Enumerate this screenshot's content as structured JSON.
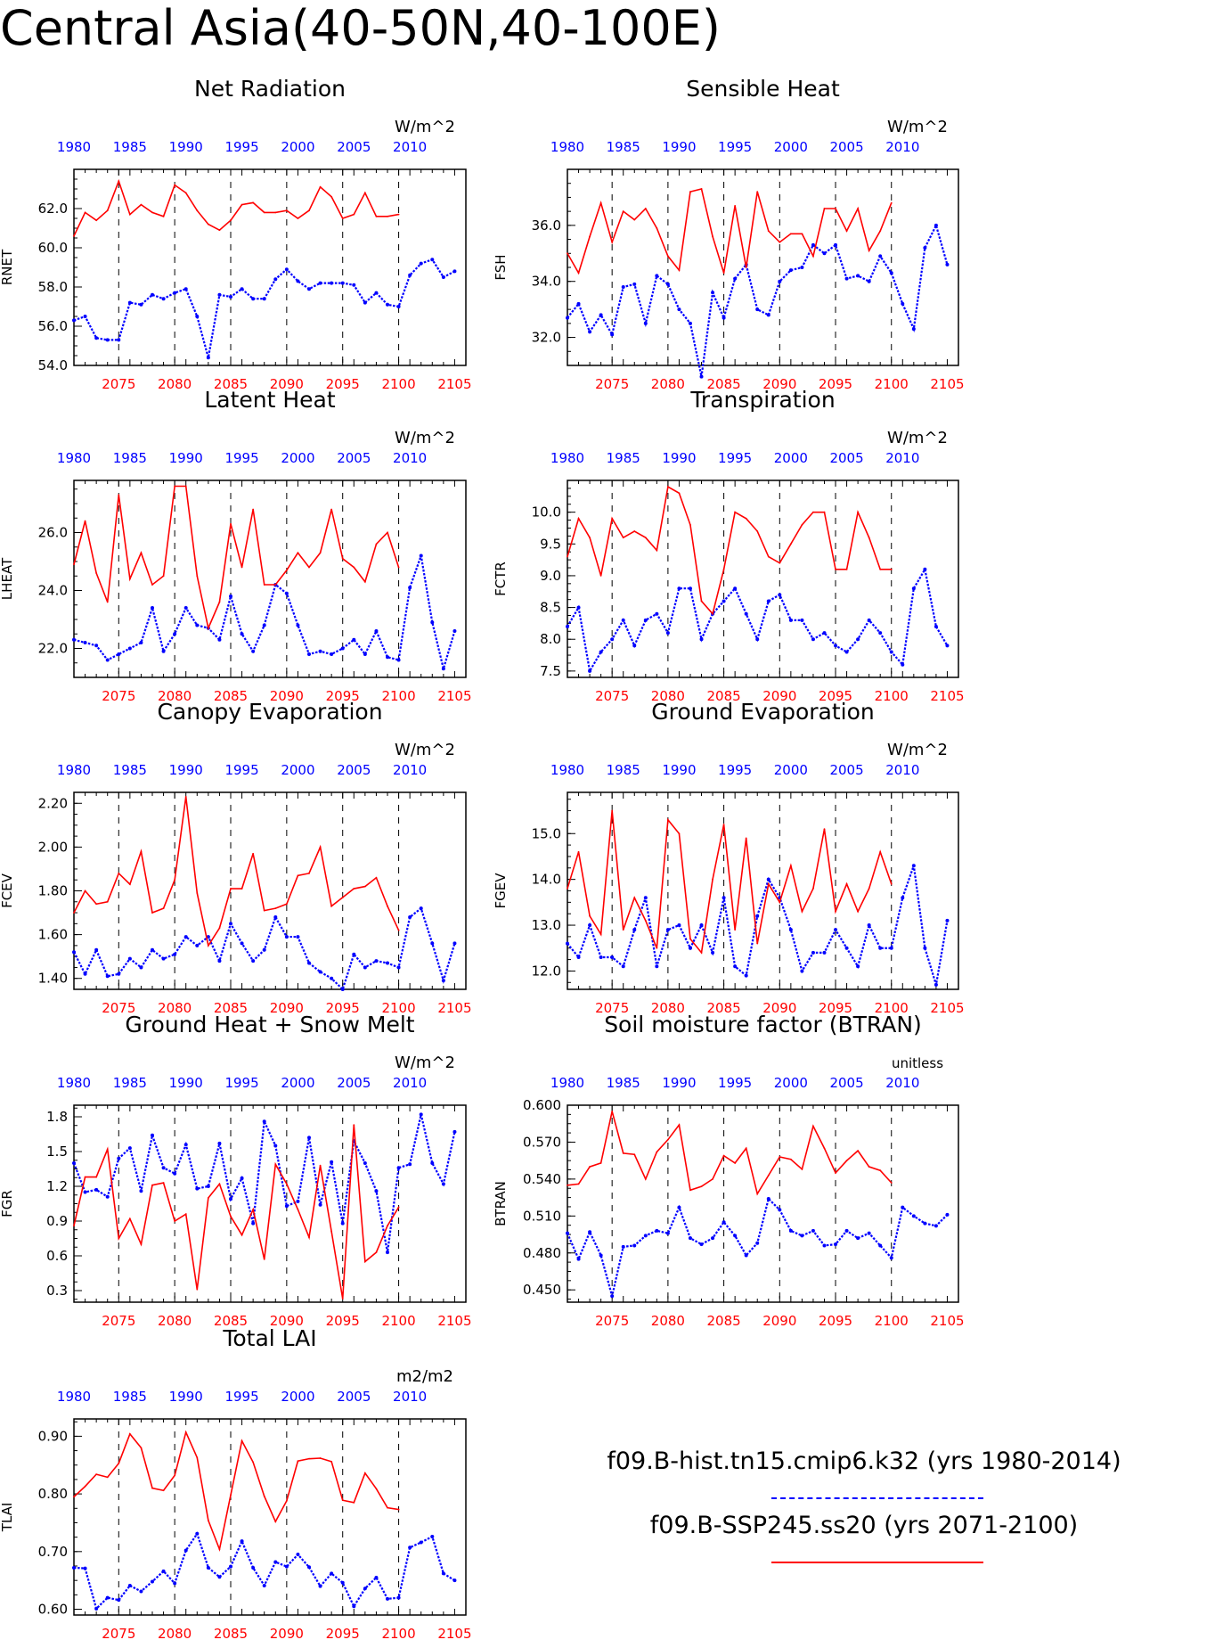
{
  "page_title": "Central Asia(40-50N,40-100E)",
  "colors": {
    "hist": "#0000ff",
    "ssp": "#ff0000",
    "axis": "#000000"
  },
  "top_axis_years": [
    1980,
    1985,
    1990,
    1995,
    2000,
    2005,
    2010
  ],
  "bottom_axis_years": [
    2075,
    2080,
    2085,
    2090,
    2095,
    2100,
    2105
  ],
  "legend": {
    "hist_label": "f09.B-hist.tn15.cmip6.k32 (yrs 1980-2014)",
    "ssp_label": "f09.B-SSP245.ss20 (yrs 2071-2100)"
  },
  "chart_data": [
    {
      "type": "line",
      "title": "Net Radiation",
      "ylabel": "RNET",
      "units": "W/m^2",
      "ylim": [
        54,
        64
      ],
      "yticks": [
        54.0,
        56.0,
        58.0,
        60.0,
        62.0
      ],
      "tick_decimals": 1,
      "series": [
        {
          "values": [
            56.3,
            56.5,
            55.4,
            55.3,
            55.3,
            57.2,
            57.1,
            57.6,
            57.4,
            57.7,
            57.9,
            56.5,
            54.4,
            57.6,
            57.5,
            57.9,
            57.4,
            57.4,
            58.4,
            58.9,
            58.3,
            57.9,
            58.2,
            58.2,
            58.2,
            58.1,
            57.2,
            57.7,
            57.1,
            57.0,
            58.6,
            59.2,
            59.4,
            58.5,
            58.8
          ]
        },
        {
          "values": [
            60.6,
            61.8,
            61.4,
            61.9,
            63.4,
            61.7,
            62.2,
            61.8,
            61.6,
            63.2,
            62.8,
            61.9,
            61.2,
            60.9,
            61.4,
            62.2,
            62.3,
            61.8,
            61.8,
            61.9,
            61.5,
            61.9,
            63.1,
            62.6,
            61.5,
            61.7,
            62.8,
            61.6,
            61.6,
            61.7
          ]
        }
      ]
    },
    {
      "type": "line",
      "title": "Sensible Heat",
      "ylabel": "FSH",
      "units": "W/m^2",
      "ylim": [
        31,
        38
      ],
      "yticks": [
        32.0,
        34.0,
        36.0
      ],
      "tick_decimals": 1,
      "series": [
        {
          "values": [
            32.7,
            33.2,
            32.2,
            32.8,
            32.1,
            33.8,
            33.9,
            32.5,
            34.2,
            33.9,
            33.0,
            32.5,
            30.6,
            33.6,
            32.7,
            34.1,
            34.6,
            33.0,
            32.8,
            34.0,
            34.4,
            34.5,
            35.3,
            35.0,
            35.3,
            34.1,
            34.2,
            34.0,
            34.9,
            34.3,
            33.2,
            32.3,
            35.2,
            36.0,
            34.6
          ]
        },
        {
          "values": [
            35.0,
            34.3,
            35.6,
            36.8,
            35.4,
            36.5,
            36.2,
            36.6,
            35.9,
            34.9,
            34.4,
            37.2,
            37.3,
            35.6,
            34.3,
            36.7,
            34.5,
            37.2,
            35.8,
            35.4,
            35.7,
            35.7,
            34.9,
            36.6,
            36.6,
            35.8,
            36.6,
            35.1,
            35.8,
            36.8
          ]
        }
      ]
    },
    {
      "type": "line",
      "title": "Latent Heat",
      "ylabel": "LHEAT",
      "units": "W/m^2",
      "ylim": [
        21,
        27.8
      ],
      "yticks": [
        22.0,
        24.0,
        26.0
      ],
      "tick_decimals": 1,
      "series": [
        {
          "values": [
            22.3,
            22.2,
            22.1,
            21.6,
            21.8,
            22.0,
            22.2,
            23.4,
            21.9,
            22.5,
            23.4,
            22.8,
            22.7,
            22.3,
            23.8,
            22.5,
            21.9,
            22.8,
            24.2,
            23.9,
            22.8,
            21.8,
            21.9,
            21.8,
            22.0,
            22.3,
            21.8,
            22.6,
            21.7,
            21.6,
            24.1,
            25.2,
            22.9,
            21.3,
            22.6
          ]
        },
        {
          "values": [
            24.9,
            26.4,
            24.6,
            23.6,
            27.3,
            24.4,
            25.3,
            24.2,
            24.5,
            27.6,
            27.6,
            24.5,
            22.7,
            23.6,
            26.3,
            24.8,
            26.8,
            24.2,
            24.2,
            24.7,
            25.3,
            24.8,
            25.3,
            26.8,
            25.1,
            24.8,
            24.3,
            25.6,
            26.0,
            24.8
          ]
        }
      ]
    },
    {
      "type": "line",
      "title": "Transpiration",
      "ylabel": "FCTR",
      "units": "W/m^2",
      "ylim": [
        7.4,
        10.5
      ],
      "yticks": [
        7.5,
        8.0,
        8.5,
        9.0,
        9.5,
        10.0
      ],
      "tick_decimals": 1,
      "series": [
        {
          "values": [
            8.2,
            8.5,
            7.5,
            7.8,
            8.0,
            8.3,
            7.9,
            8.3,
            8.4,
            8.1,
            8.8,
            8.8,
            8.0,
            8.4,
            8.6,
            8.8,
            8.4,
            8.0,
            8.6,
            8.7,
            8.3,
            8.3,
            8.0,
            8.1,
            7.9,
            7.8,
            8.0,
            8.3,
            8.1,
            7.8,
            7.6,
            8.8,
            9.1,
            8.2,
            7.9
          ]
        },
        {
          "values": [
            9.3,
            9.9,
            9.6,
            9.0,
            9.9,
            9.6,
            9.7,
            9.6,
            9.4,
            10.4,
            10.3,
            9.8,
            8.6,
            8.4,
            9.1,
            10.0,
            9.9,
            9.7,
            9.3,
            9.2,
            9.5,
            9.8,
            10.0,
            10.0,
            9.1,
            9.1,
            10.0,
            9.6,
            9.1,
            9.1
          ]
        }
      ]
    },
    {
      "type": "line",
      "title": "Canopy Evaporation",
      "ylabel": "FCEV",
      "units": "W/m^2",
      "ylim": [
        1.35,
        2.25
      ],
      "yticks": [
        1.4,
        1.6,
        1.8,
        2.0,
        2.2
      ],
      "tick_decimals": 2,
      "series": [
        {
          "values": [
            1.52,
            1.42,
            1.53,
            1.41,
            1.42,
            1.49,
            1.45,
            1.53,
            1.49,
            1.51,
            1.59,
            1.55,
            1.59,
            1.48,
            1.65,
            1.56,
            1.48,
            1.53,
            1.68,
            1.59,
            1.59,
            1.47,
            1.43,
            1.4,
            1.35,
            1.51,
            1.45,
            1.48,
            1.47,
            1.45,
            1.68,
            1.72,
            1.56,
            1.39,
            1.56
          ]
        },
        {
          "values": [
            1.7,
            1.8,
            1.74,
            1.75,
            1.88,
            1.83,
            1.98,
            1.7,
            1.72,
            1.85,
            2.23,
            1.79,
            1.55,
            1.63,
            1.81,
            1.81,
            1.97,
            1.71,
            1.72,
            1.74,
            1.87,
            1.88,
            2.0,
            1.73,
            1.77,
            1.81,
            1.82,
            1.86,
            1.73,
            1.62
          ]
        }
      ]
    },
    {
      "type": "line",
      "title": "Ground Evaporation",
      "ylabel": "FGEV",
      "units": "W/m^2",
      "ylim": [
        11.6,
        15.9
      ],
      "yticks": [
        12.0,
        13.0,
        14.0,
        15.0
      ],
      "tick_decimals": 1,
      "series": [
        {
          "values": [
            12.6,
            12.3,
            13.0,
            12.3,
            12.3,
            12.1,
            12.9,
            13.6,
            12.1,
            12.9,
            13.0,
            12.5,
            13.0,
            12.4,
            13.6,
            12.1,
            11.9,
            13.2,
            14.0,
            13.6,
            12.9,
            12.0,
            12.4,
            12.4,
            12.9,
            12.5,
            12.1,
            13.0,
            12.5,
            12.5,
            13.6,
            14.3,
            12.5,
            11.7,
            13.1
          ]
        },
        {
          "values": [
            13.8,
            14.6,
            13.2,
            12.8,
            15.5,
            12.9,
            13.6,
            13.1,
            12.5,
            15.3,
            15.0,
            12.7,
            12.4,
            14.0,
            15.2,
            12.9,
            14.9,
            12.6,
            13.9,
            13.5,
            14.3,
            13.3,
            13.8,
            15.1,
            13.3,
            13.9,
            13.3,
            13.8,
            14.6,
            13.9
          ]
        }
      ]
    },
    {
      "type": "line",
      "title": "Ground Heat + Snow Melt",
      "ylabel": "FGR",
      "units": "W/m^2",
      "ylim": [
        0.2,
        1.9
      ],
      "yticks": [
        0.3,
        0.6,
        0.9,
        1.2,
        1.5,
        1.8
      ],
      "tick_decimals": 1,
      "series": [
        {
          "values": [
            1.4,
            1.15,
            1.17,
            1.11,
            1.44,
            1.53,
            1.16,
            1.64,
            1.36,
            1.31,
            1.56,
            1.18,
            1.2,
            1.57,
            1.09,
            1.27,
            0.88,
            1.76,
            1.55,
            1.03,
            1.07,
            1.62,
            1.04,
            1.41,
            0.88,
            1.59,
            1.4,
            1.16,
            0.63,
            1.36,
            1.39,
            1.82,
            1.4,
            1.22,
            1.67
          ]
        },
        {
          "values": [
            0.86,
            1.28,
            1.28,
            1.52,
            0.75,
            0.92,
            0.7,
            1.21,
            1.23,
            0.9,
            0.96,
            0.31,
            1.1,
            1.22,
            0.94,
            0.78,
            1.0,
            0.57,
            1.39,
            1.22,
            1.0,
            0.76,
            1.38,
            0.81,
            0.23,
            1.73,
            0.55,
            0.63,
            0.86,
            1.02
          ]
        }
      ]
    },
    {
      "type": "line",
      "title": "Soil moisture factor (BTRAN)",
      "ylabel": "BTRAN",
      "units": "unitless",
      "ylim": [
        0.44,
        0.6
      ],
      "yticks": [
        0.45,
        0.48,
        0.51,
        0.54,
        0.57,
        0.6
      ],
      "tick_decimals": 3,
      "series": [
        {
          "values": [
            0.496,
            0.475,
            0.497,
            0.478,
            0.445,
            0.485,
            0.486,
            0.494,
            0.498,
            0.496,
            0.517,
            0.492,
            0.487,
            0.492,
            0.505,
            0.494,
            0.478,
            0.488,
            0.524,
            0.515,
            0.498,
            0.494,
            0.498,
            0.486,
            0.487,
            0.498,
            0.492,
            0.496,
            0.486,
            0.476,
            0.517,
            0.51,
            0.504,
            0.502,
            0.511
          ]
        },
        {
          "values": [
            0.535,
            0.536,
            0.55,
            0.553,
            0.595,
            0.561,
            0.56,
            0.54,
            0.562,
            0.572,
            0.584,
            0.531,
            0.534,
            0.54,
            0.559,
            0.553,
            0.565,
            0.528,
            0.543,
            0.558,
            0.556,
            0.548,
            0.583,
            0.565,
            0.545,
            0.555,
            0.563,
            0.55,
            0.547,
            0.537
          ]
        }
      ]
    },
    {
      "type": "line",
      "title": "Total LAI",
      "ylabel": "TLAI",
      "units": "m2/m2",
      "ylim": [
        0.59,
        0.93
      ],
      "yticks": [
        0.6,
        0.7,
        0.8,
        0.9
      ],
      "tick_decimals": 2,
      "series": [
        {
          "values": [
            0.672,
            0.671,
            0.601,
            0.62,
            0.616,
            0.641,
            0.631,
            0.648,
            0.666,
            0.645,
            0.702,
            0.731,
            0.672,
            0.656,
            0.674,
            0.718,
            0.672,
            0.641,
            0.682,
            0.674,
            0.695,
            0.673,
            0.64,
            0.662,
            0.646,
            0.605,
            0.636,
            0.655,
            0.618,
            0.62,
            0.707,
            0.716,
            0.726,
            0.662,
            0.65
          ]
        },
        {
          "values": [
            0.795,
            0.813,
            0.834,
            0.829,
            0.853,
            0.904,
            0.88,
            0.81,
            0.806,
            0.832,
            0.907,
            0.863,
            0.754,
            0.704,
            0.798,
            0.892,
            0.855,
            0.796,
            0.752,
            0.788,
            0.857,
            0.861,
            0.862,
            0.856,
            0.789,
            0.785,
            0.836,
            0.809,
            0.776,
            0.773
          ]
        }
      ]
    }
  ]
}
